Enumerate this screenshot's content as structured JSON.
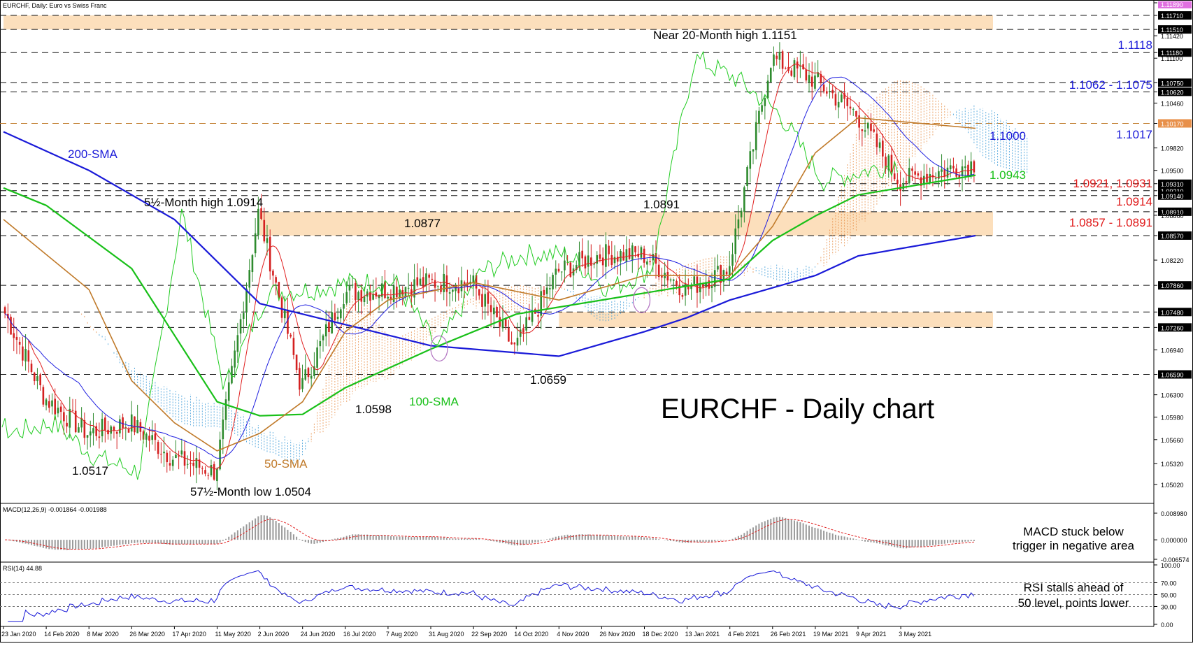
{
  "header": "EURCHF, Daily: Euro vs Swiss Franc",
  "colors": {
    "candle_up": "#2e8b2e",
    "candle_down": "#d42020",
    "sma200": "#1a1ad8",
    "sma100": "#19c019",
    "sma50": "#c07a2a",
    "tenkan": "#e02020",
    "kijun": "#2020e0",
    "chikou": "#22cc22",
    "cloud_blue": "#3a9ad8",
    "cloud_orange": "#e8904a",
    "zone": "#fbd9b0",
    "label_blue": "#1a1ad8",
    "label_red": "#e01a1a",
    "label_green": "#19c019",
    "label_brown": "#c07a2a"
  },
  "main_title": "EURCHF - Daily chart",
  "annotations": {
    "near_high": "Near 20-Month high 1.1151",
    "six_month_high": "5½-Month high 1.0914",
    "low_1_0517": "1.0517",
    "month_low": "57½-Month low 1.0504",
    "l_1_0598": "1.0598",
    "l_1_0877": "1.0877",
    "l_1_0891": "1.0891",
    "l_1_0659": "1.0659",
    "r_1_1118": "1.1118",
    "r_1_1062": "1.1062 - 1.1075",
    "r_1_1017": "1.1017",
    "r_1_1000": "1.1000",
    "r_1_0943": "1.0943",
    "r_1_0921": "1.0921, 1.0931",
    "r_1_0914": "1.0914",
    "r_1_0857": "1.0857 - 1.0891",
    "sma200": "200-SMA",
    "sma100": "100-SMA",
    "sma50": "50-SMA"
  },
  "price_axis": {
    "ticks": [
      "1.11890",
      "1.11710",
      "1.11510",
      "1.11420",
      "1.11180",
      "1.11100",
      "1.10750",
      "1.10620",
      "1.10460",
      "1.10170",
      "1.09820",
      "1.09500",
      "1.09310",
      "1.09210",
      "1.09140",
      "1.08910",
      "1.08860",
      "1.08570",
      "1.08220",
      "1.07860",
      "1.07480",
      "1.07260",
      "1.06940",
      "1.06590",
      "1.06300",
      "1.05980",
      "1.05660",
      "1.05320",
      "1.05020"
    ],
    "highlighted": [
      "1.11710",
      "1.11510",
      "1.11180",
      "1.10750",
      "1.10620",
      "1.10170",
      "1.09310",
      "1.09210",
      "1.09140",
      "1.08910",
      "1.08570",
      "1.07860",
      "1.07480",
      "1.07260",
      "1.06590"
    ],
    "current": "1.10170",
    "top": "1.11890"
  },
  "x_axis_labels": [
    "23 Jan 2020",
    "14 Feb 2020",
    "8 Mar 2020",
    "26 Mar 2020",
    "17 Apr 2020",
    "11 May 2020",
    "2 Jun 2020",
    "24 Jun 2020",
    "16 Jul 2020",
    "7 Aug 2020",
    "31 Aug 2020",
    "22 Sep 2020",
    "14 Oct 2020",
    "4 Nov 2020",
    "26 Nov 2020",
    "18 Dec 2020",
    "13 Jan 2021",
    "4 Feb 2021",
    "26 Feb 2021",
    "19 Mar 2021",
    "9 Apr 2021",
    "3 May 2021"
  ],
  "macd": {
    "header": "MACD(12,26,9) -0.001864 -0.001988",
    "ticks": [
      "0.008980",
      "0.000000",
      "-0.006574"
    ],
    "note_line1": "MACD stuck below",
    "note_line2": "trigger in negative area"
  },
  "rsi": {
    "header": "RSI(14) 44.88",
    "ticks": [
      "100.00",
      "70.00",
      "50.00",
      "30.00",
      "0.00"
    ],
    "note_line1": "RSI stalls ahead of",
    "note_line2": "50 level, points lower"
  },
  "chart_data": {
    "type": "candlestick",
    "symbol": "EURCHF",
    "timeframe": "Daily",
    "title": "EURCHF - Daily chart",
    "ylim": [
      1.05,
      1.119
    ],
    "x_range": [
      "23 Jan 2020",
      "14 May 2021"
    ],
    "price_path": [
      [
        "23 Jan 2020",
        1.0755
      ],
      [
        "14 Feb 2020",
        1.0625
      ],
      [
        "8 Mar 2020",
        1.0575
      ],
      [
        "26 Mar 2020",
        1.059
      ],
      [
        "17 Apr 2020",
        1.054
      ],
      [
        "11 May 2020",
        1.052
      ],
      [
        "2 Jun 2020",
        1.089
      ],
      [
        "24 Jun 2020",
        1.064
      ],
      [
        "16 Jul 2020",
        1.0775
      ],
      [
        "7 Aug 2020",
        1.078
      ],
      [
        "31 Aug 2020",
        1.079
      ],
      [
        "22 Sep 2020",
        1.079
      ],
      [
        "14 Oct 2020",
        1.0695
      ],
      [
        "4 Nov 2020",
        1.0805
      ],
      [
        "26 Nov 2020",
        1.083
      ],
      [
        "18 Dec 2020",
        1.083
      ],
      [
        "13 Jan 2021",
        1.078
      ],
      [
        "4 Feb 2021",
        1.081
      ],
      [
        "26 Feb 2021",
        1.111
      ],
      [
        "19 Mar 2021",
        1.108
      ],
      [
        "9 Apr 2021",
        1.103
      ],
      [
        "3 May 2021",
        1.0935
      ],
      [
        "14 May 2021",
        1.096
      ]
    ],
    "series": [
      {
        "name": "200-SMA",
        "points": [
          [
            "23 Jan 2020",
            1.1005
          ],
          [
            "8 Mar 2020",
            1.095
          ],
          [
            "17 Apr 2020",
            1.088
          ],
          [
            "2 Jun 2020",
            1.076
          ],
          [
            "16 Jul 2020",
            1.073
          ],
          [
            "31 Aug 2020",
            1.07
          ],
          [
            "4 Nov 2020",
            1.0685
          ],
          [
            "18 Dec 2020",
            1.072
          ],
          [
            "13 Jan 2021",
            1.074
          ],
          [
            "4 Feb 2021",
            1.0765
          ],
          [
            "19 Mar 2021",
            1.08
          ],
          [
            "9 Apr 2021",
            1.0828
          ],
          [
            "14 May 2021",
            1.0857
          ]
        ]
      },
      {
        "name": "100-SMA",
        "points": [
          [
            "23 Jan 2020",
            1.0925
          ],
          [
            "14 Feb 2020",
            1.09
          ],
          [
            "26 Mar 2020",
            1.081
          ],
          [
            "11 May 2020",
            1.062
          ],
          [
            "2 Jun 2020",
            1.06
          ],
          [
            "24 Jun 2020",
            1.0602
          ],
          [
            "16 Jul 2020",
            1.064
          ],
          [
            "31 Aug 2020",
            1.0695
          ],
          [
            "14 Oct 2020",
            1.0745
          ],
          [
            "18 Dec 2020",
            1.0775
          ],
          [
            "4 Feb 2021",
            1.0795
          ],
          [
            "26 Feb 2021",
            1.085
          ],
          [
            "19 Mar 2021",
            1.0885
          ],
          [
            "9 Apr 2021",
            1.0915
          ],
          [
            "14 May 2021",
            1.0943
          ]
        ]
      },
      {
        "name": "50-SMA",
        "points": [
          [
            "23 Jan 2020",
            1.088
          ],
          [
            "8 Mar 2020",
            1.078
          ],
          [
            "26 Mar 2020",
            1.065
          ],
          [
            "17 Apr 2020",
            1.059
          ],
          [
            "11 May 2020",
            1.055
          ],
          [
            "2 Jun 2020",
            1.0575
          ],
          [
            "24 Jun 2020",
            1.062
          ],
          [
            "16 Jul 2020",
            1.072
          ],
          [
            "7 Aug 2020",
            1.0765
          ],
          [
            "22 Sep 2020",
            1.079
          ],
          [
            "4 Nov 2020",
            1.0765
          ],
          [
            "18 Dec 2020",
            1.08
          ],
          [
            "4 Feb 2021",
            1.08
          ],
          [
            "26 Feb 2021",
            1.087
          ],
          [
            "19 Mar 2021",
            1.0975
          ],
          [
            "9 Apr 2021",
            1.1025
          ],
          [
            "14 May 2021",
            1.101
          ]
        ]
      }
    ],
    "levels": [
      1.1151,
      1.1118,
      1.1075,
      1.1062,
      1.1017,
      1.1,
      1.0943,
      1.0931,
      1.0921,
      1.0914,
      1.0891,
      1.0877,
      1.0857,
      1.0786,
      1.0748,
      1.0726,
      1.0659,
      1.0598,
      1.0517,
      1.0504
    ],
    "zones": [
      [
        1.1151,
        1.1171
      ],
      [
        1.0857,
        1.0891
      ],
      [
        1.0726,
        1.0748
      ]
    ],
    "indicators": {
      "macd": {
        "params": "12,26,9",
        "main": -0.001864,
        "signal": -0.001988,
        "ylim": [
          -0.006574,
          0.00898
        ]
      },
      "rsi": {
        "period": 14,
        "value": 44.88,
        "levels": [
          70,
          50,
          30
        ],
        "ylim": [
          0,
          100
        ]
      }
    },
    "grid": false
  }
}
